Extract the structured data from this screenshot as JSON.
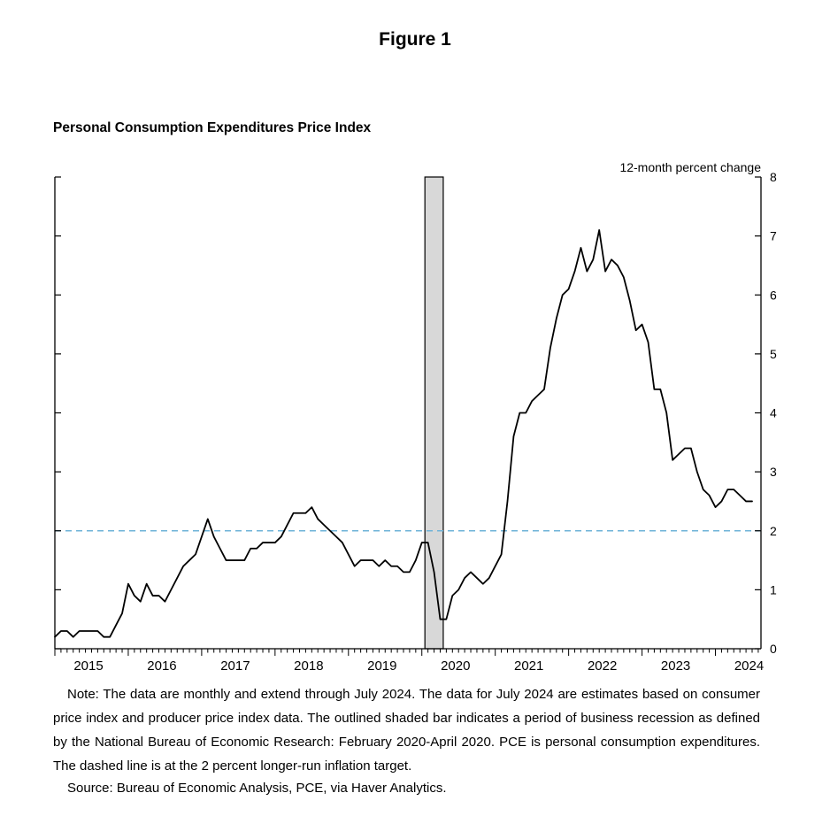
{
  "page": {
    "figure_label": "Figure 1",
    "chart_title": "Personal Consumption Expenditures Price Index",
    "axis_unit_label": "12-month percent change",
    "note": "Note: The data are monthly and extend through July 2024. The data for July 2024 are estimates based on consumer price index and producer price index data. The outlined shaded bar indicates a period of business recession as defined by the National Bureau of Economic Research: February 2020-April 2020. PCE is personal consumption expenditures. The dashed line is at the 2 percent longer-run inflation target.",
    "source": "Source: Bureau of Economic Analysis, PCE, via Haver Analytics."
  },
  "chart_data": {
    "type": "line",
    "title": "Personal Consumption Expenditures Price Index",
    "unit_label": "12-month percent change",
    "frequency": "monthly",
    "x_start": "2015-01",
    "x_end": "2024-07",
    "x_tick_labels": [
      "2015",
      "2016",
      "2017",
      "2018",
      "2019",
      "2020",
      "2021",
      "2022",
      "2023",
      "2024"
    ],
    "ylim": [
      0,
      8
    ],
    "y_ticks": [
      0,
      1,
      2,
      3,
      4,
      5,
      6,
      7,
      8
    ],
    "line_color": "#000000",
    "reference_line": {
      "value": 2,
      "style": "dashed",
      "color": "#6fb3d8",
      "meaning": "2 percent longer-run inflation target"
    },
    "recession_band": {
      "from": "2020-02",
      "to": "2020-04",
      "fill": "#d8d8d8",
      "outline": "#000000",
      "meaning": "NBER business recession"
    },
    "series": [
      {
        "name": "PCE price index, 12-month percent change",
        "values": [
          0.2,
          0.3,
          0.3,
          0.2,
          0.3,
          0.3,
          0.3,
          0.3,
          0.2,
          0.2,
          0.4,
          0.6,
          1.1,
          0.9,
          0.8,
          1.1,
          0.9,
          0.9,
          0.8,
          1.0,
          1.2,
          1.4,
          1.5,
          1.6,
          1.9,
          2.2,
          1.9,
          1.7,
          1.5,
          1.5,
          1.5,
          1.5,
          1.7,
          1.7,
          1.8,
          1.8,
          1.8,
          1.9,
          2.1,
          2.3,
          2.3,
          2.3,
          2.4,
          2.2,
          2.1,
          2.0,
          1.9,
          1.8,
          1.6,
          1.4,
          1.5,
          1.5,
          1.5,
          1.4,
          1.5,
          1.4,
          1.4,
          1.3,
          1.3,
          1.5,
          1.8,
          1.8,
          1.3,
          0.5,
          0.5,
          0.9,
          1.0,
          1.2,
          1.3,
          1.2,
          1.1,
          1.2,
          1.4,
          1.6,
          2.5,
          3.6,
          4.0,
          4.0,
          4.2,
          4.3,
          4.4,
          5.1,
          5.6,
          6.0,
          6.1,
          6.4,
          6.8,
          6.4,
          6.6,
          7.1,
          6.4,
          6.6,
          6.5,
          6.3,
          5.9,
          5.4,
          5.5,
          5.2,
          4.4,
          4.4,
          4.0,
          3.2,
          3.3,
          3.4,
          3.4,
          3.0,
          2.7,
          2.6,
          2.4,
          2.5,
          2.7,
          2.7,
          2.6,
          2.5,
          2.5
        ]
      }
    ]
  }
}
